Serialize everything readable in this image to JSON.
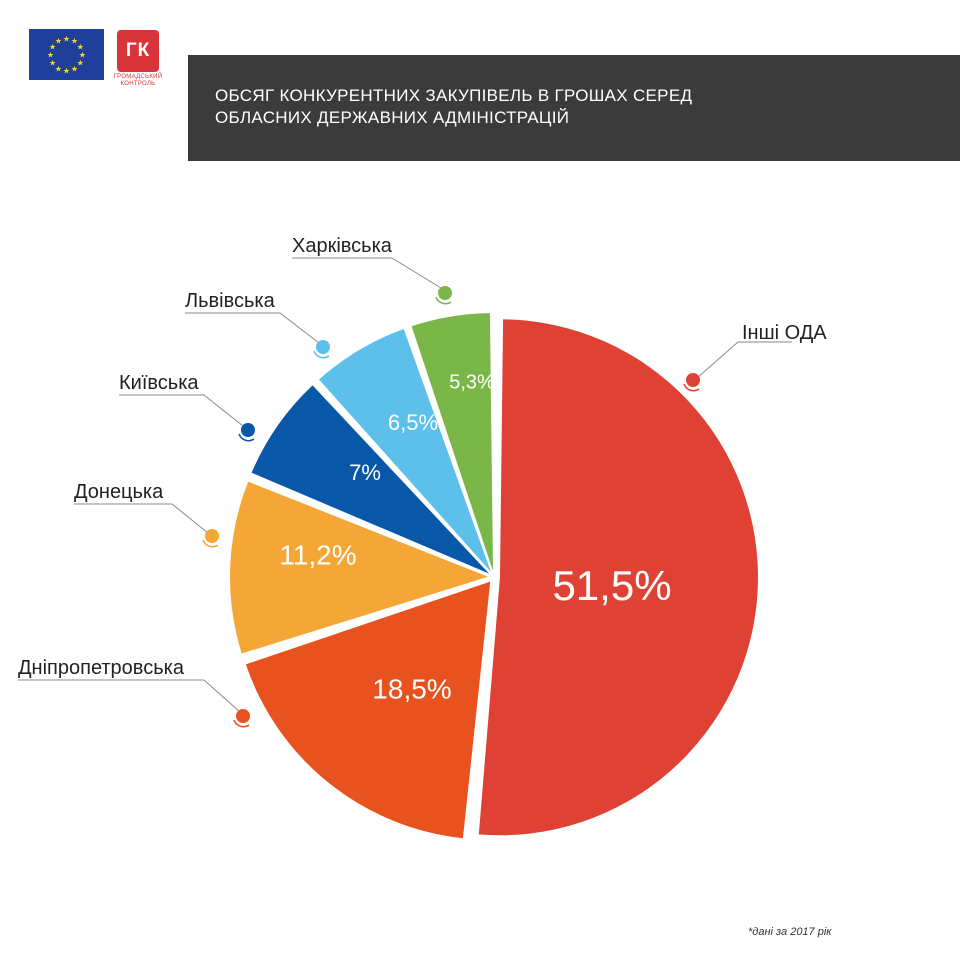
{
  "header": {
    "title": "ОБСЯГ КОНКУРЕНТНИХ  ЗАКУПІВЕЛЬ В ГРОШАХ СЕРЕД ОБЛАСНИХ ДЕРЖАВНИХ АДМІНІСТРАЦІЙ"
  },
  "logos": {
    "eu_flag_icon": "eu-flag-icon",
    "gk_mark": "ГК",
    "gk_text": "ГРОМАДСЬКИЙ КОНТРОЛЬ"
  },
  "footnote": "*дані за 2017 рік",
  "chart_data": {
    "type": "pie",
    "slices": [
      {
        "label": "Інші ОДА",
        "value": 51.5,
        "display": "51,5%",
        "color": "#df4234"
      },
      {
        "label": "Дніпропетровська",
        "value": 18.5,
        "display": "18,5%",
        "color": "#e8521f"
      },
      {
        "label": "Донецька",
        "value": 11.2,
        "display": "11,2%",
        "color": "#f4a736"
      },
      {
        "label": "Київська",
        "value": 7,
        "display": "7%",
        "color": "#0857a8"
      },
      {
        "label": "Львівська",
        "value": 6.5,
        "display": "6,5%",
        "color": "#5cc0ea"
      },
      {
        "label": "Харківська",
        "value": 5.3,
        "display": "5,3%",
        "color": "#7ab648"
      }
    ]
  }
}
